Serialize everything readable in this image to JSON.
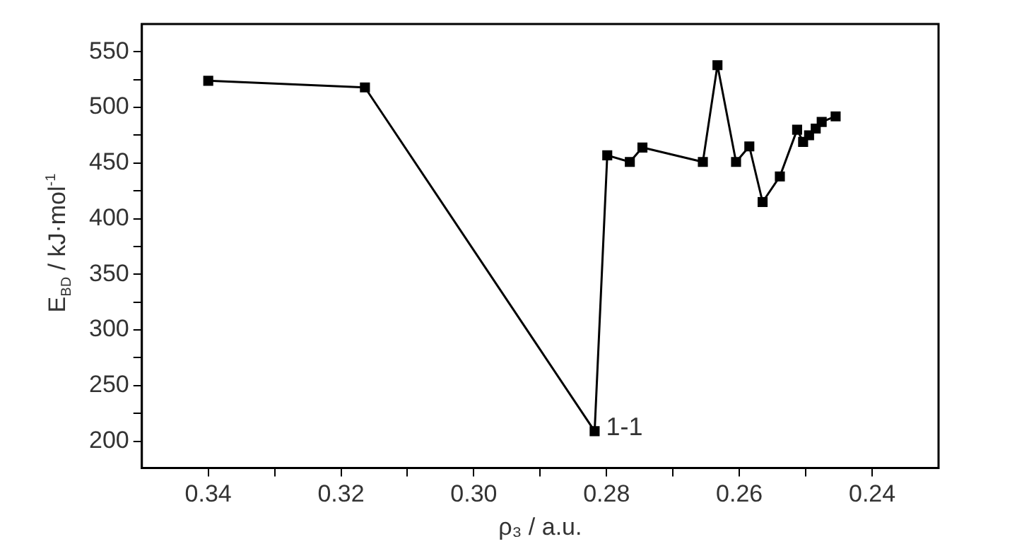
{
  "chart_data": {
    "type": "line",
    "xlabel": "ρ₃ / a.u.",
    "ylabel": "E$_{BD}$ / kJ·mol$^{-1}$",
    "xlim": [
      0.35,
      0.23
    ],
    "ylim": [
      176,
      575
    ],
    "xticks": [
      0.34,
      {
        "value": 0.33,
        "label": null
      },
      0.32,
      {
        "value": 0.31,
        "label": null
      },
      {
        "value": 0.3,
        "label": "0.30"
      },
      {
        "value": 0.29,
        "label": null
      },
      0.28,
      {
        "value": 0.27,
        "label": null
      },
      0.26,
      {
        "value": 0.25,
        "label": null
      },
      0.24
    ],
    "yticks": [
      200,
      {
        "value": 225,
        "label": null
      },
      250,
      {
        "value": 275,
        "label": null
      },
      300,
      {
        "value": 325,
        "label": null
      },
      350,
      {
        "value": 375,
        "label": null
      },
      400,
      {
        "value": 425,
        "label": null
      },
      450,
      {
        "value": 475,
        "label": null
      },
      500,
      {
        "value": 525,
        "label": null
      },
      550
    ],
    "series": [
      {
        "color": "#000000",
        "x": [
          0.34,
          0.3164,
          0.2818,
          0.2799,
          0.2765,
          0.2746,
          0.2655,
          0.2633,
          0.2605,
          0.2585,
          0.2565,
          0.2539,
          0.2513,
          0.2504,
          0.2495,
          0.2485,
          0.2476,
          0.2455
        ],
        "values": [
          524,
          518,
          209,
          457,
          451,
          464,
          451,
          538,
          451,
          465,
          415,
          438,
          480,
          469,
          475,
          481,
          487,
          492
        ]
      }
    ],
    "marker": "square",
    "line_style": "solid",
    "grid": false,
    "legend": false,
    "annotations": [
      {
        "text": "1-1",
        "x": 0.2818,
        "y": 209
      }
    ]
  }
}
